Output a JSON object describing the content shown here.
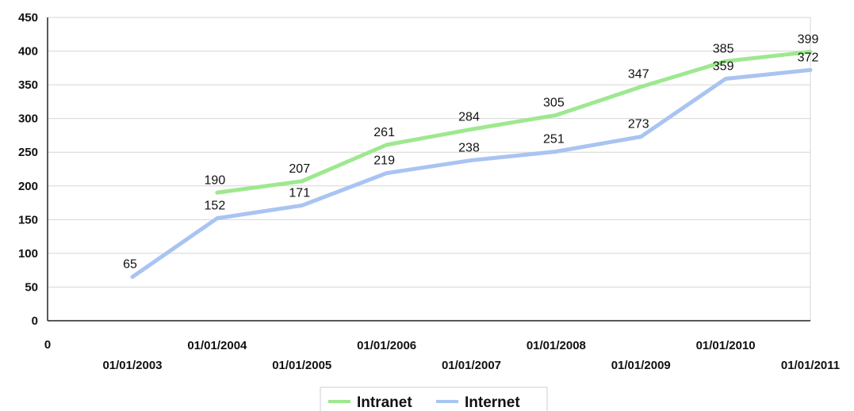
{
  "chart_data": {
    "type": "line",
    "categories": [
      "01/01/2003",
      "01/01/2004",
      "01/01/2005",
      "01/01/2006",
      "01/01/2007",
      "01/01/2008",
      "01/01/2009",
      "01/01/2010",
      "01/01/2011"
    ],
    "x_origin_label": "0",
    "series": [
      {
        "name": "Intranet",
        "color": "#9ee88f",
        "values": [
          null,
          190,
          207,
          261,
          284,
          305,
          347,
          385,
          399
        ]
      },
      {
        "name": "Internet",
        "color": "#a9c4f2",
        "values": [
          65,
          152,
          171,
          219,
          238,
          251,
          273,
          359,
          372
        ]
      }
    ],
    "ylim": [
      0,
      450
    ],
    "yticks": [
      0,
      50,
      100,
      150,
      200,
      250,
      300,
      350,
      400,
      450
    ],
    "grid": true,
    "legend_position": "bottom-center",
    "title": "",
    "xlabel": "",
    "ylabel": ""
  }
}
